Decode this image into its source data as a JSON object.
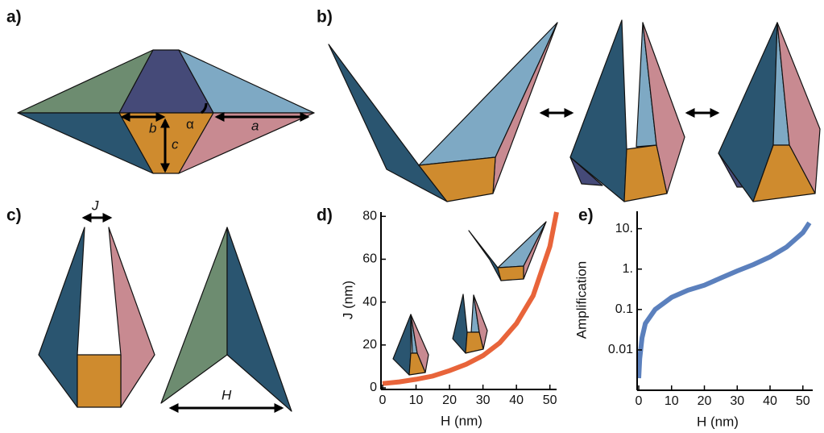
{
  "panel_labels": [
    "a)",
    "b)",
    "c)",
    "d)",
    "e)"
  ],
  "diagram_labels": {
    "a": "a",
    "b": "b",
    "c": "c",
    "alpha": "α",
    "J": "J",
    "H": "H"
  },
  "chart_data": [
    {
      "type": "line",
      "xlabel": "H (nm)",
      "ylabel": "J (nm)",
      "x": [
        0,
        5,
        10,
        15,
        20,
        25,
        30,
        35,
        40,
        45,
        50,
        52
      ],
      "values": [
        2,
        2.8,
        4,
        5.5,
        8,
        11,
        15,
        21,
        30,
        43,
        66,
        82
      ],
      "color": "#e8643a",
      "xlim": [
        0,
        52
      ],
      "ylim": [
        0,
        82
      ],
      "xticks": [
        0,
        10,
        20,
        30,
        40,
        50
      ],
      "yticks": [
        0,
        20,
        40,
        60,
        80
      ],
      "log_y": false
    },
    {
      "type": "line",
      "xlabel": "H (nm)",
      "ylabel": "Amplification",
      "x": [
        0,
        0.3,
        1,
        2,
        5,
        10,
        15,
        20,
        25,
        30,
        35,
        40,
        45,
        50,
        52
      ],
      "values": [
        0.002,
        0.006,
        0.02,
        0.045,
        0.1,
        0.2,
        0.3,
        0.4,
        0.6,
        0.9,
        1.3,
        2,
        3.5,
        8,
        14
      ],
      "color": "#5b80bd",
      "xlim": [
        0,
        53
      ],
      "ylim": [
        0.0011,
        27
      ],
      "xticks": [
        0,
        10,
        20,
        30,
        40,
        50
      ],
      "yticks": [
        0.01,
        0.1,
        {
          "value": 1,
          "label": "1."
        },
        {
          "value": 10,
          "label": "10."
        }
      ],
      "log_y": true
    }
  ]
}
